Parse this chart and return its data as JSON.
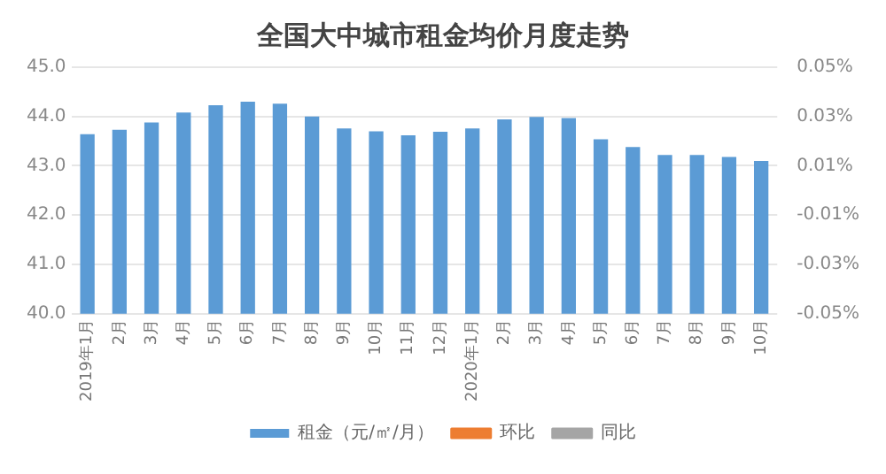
{
  "chart_data": {
    "type": "bar",
    "title": "全国大中城市租金均价月度走势",
    "categories": [
      "2019年1月",
      "2月",
      "3月",
      "4月",
      "5月",
      "6月",
      "7月",
      "8月",
      "9月",
      "10月",
      "11月",
      "12月",
      "2020年1月",
      "2月",
      "3月",
      "4月",
      "5月",
      "6月",
      "7月",
      "8月",
      "9月",
      "10月"
    ],
    "series": [
      {
        "name": "租金（元/㎡/月）",
        "color": "#5b9bd5",
        "values": [
          43.64,
          43.73,
          43.88,
          44.08,
          44.23,
          44.3,
          44.26,
          44.0,
          43.76,
          43.7,
          43.62,
          43.69,
          43.76,
          43.94,
          43.99,
          43.97,
          43.54,
          43.38,
          43.22,
          43.22,
          43.18,
          43.1
        ]
      },
      {
        "name": "环比",
        "type": "line",
        "color": "#ed7d31",
        "values": [
          null,
          null,
          null,
          null,
          null,
          null,
          null,
          null,
          null,
          null,
          null,
          null,
          null,
          null,
          null,
          null,
          null,
          null,
          null,
          null,
          null,
          null
        ]
      },
      {
        "name": "同比",
        "type": "line",
        "color": "#a5a5a5",
        "values": [
          null,
          null,
          null,
          null,
          null,
          null,
          null,
          null,
          null,
          null,
          null,
          null,
          null,
          null,
          null,
          null,
          null,
          null,
          null,
          null,
          null,
          null
        ]
      }
    ],
    "ylim": [
      40,
      45
    ],
    "yticks": [
      {
        "value": 40,
        "label": "40.0"
      },
      {
        "value": 41,
        "label": "41.0"
      },
      {
        "value": 42,
        "label": "42.0"
      },
      {
        "value": 43,
        "label": "43.0"
      },
      {
        "value": 44,
        "label": "44.0"
      },
      {
        "value": 45,
        "label": "45.0"
      }
    ],
    "y2lim": [
      -0.05,
      0.05
    ],
    "y2ticks": [
      {
        "value": -0.05,
        "label": "-0.05%"
      },
      {
        "value": -0.03,
        "label": "-0.03%"
      },
      {
        "value": -0.01,
        "label": "-0.01%"
      },
      {
        "value": 0.01,
        "label": "0.01%"
      },
      {
        "value": 0.03,
        "label": "0.03%"
      },
      {
        "value": 0.05,
        "label": "0.05%"
      }
    ],
    "grid": "y",
    "legend": "bottom"
  }
}
